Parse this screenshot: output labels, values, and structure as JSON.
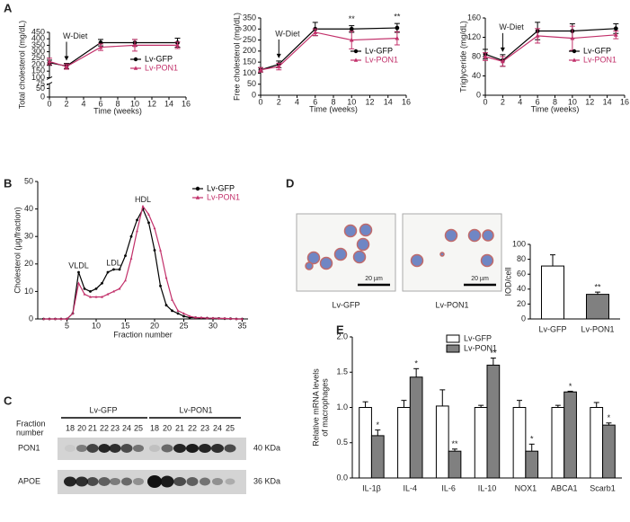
{
  "panel_labels": [
    "A",
    "B",
    "C",
    "D",
    "E"
  ],
  "chart_data": [
    {
      "type": "line",
      "y_label": "Total cholesterol (mg/dL)",
      "x_label": "Time (weeks)",
      "x": [
        0,
        2,
        6,
        10,
        15
      ],
      "xlim": [
        0,
        16
      ],
      "xticks": [
        0,
        2,
        4,
        6,
        8,
        10,
        12,
        14,
        16
      ],
      "ylim": [
        0,
        450
      ],
      "ybreak": [
        75,
        100
      ],
      "yticks": [
        0,
        50,
        75,
        100,
        150,
        200,
        250,
        300,
        350,
        400,
        450
      ],
      "legend": "center right",
      "annotations": [
        {
          "text": "W-Diet",
          "x": 2,
          "arrow": true
        }
      ],
      "series": [
        {
          "name": "Lv-GFP",
          "color": "#000000",
          "marker": "circle",
          "values": [
            215,
            190,
            370,
            370,
            370
          ],
          "errors": [
            20,
            20,
            25,
            25,
            35
          ]
        },
        {
          "name": "Lv-PON1",
          "color": "#c2306a",
          "marker": "triangle",
          "values": [
            225,
            185,
            335,
            350,
            350
          ],
          "errors": [
            25,
            20,
            25,
            45,
            25
          ]
        }
      ]
    },
    {
      "type": "line",
      "y_label": "Free cholesterol (mg/dL)",
      "x_label": "Time (weeks)",
      "x": [
        0,
        2,
        6,
        10,
        15
      ],
      "xlim": [
        0,
        16
      ],
      "xticks": [
        0,
        2,
        4,
        6,
        8,
        10,
        12,
        14,
        16
      ],
      "ylim": [
        0,
        350
      ],
      "yticks": [
        0,
        50,
        100,
        150,
        200,
        250,
        300,
        350
      ],
      "legend": "center right",
      "annotations": [
        {
          "text": "W-Diet",
          "x": 2,
          "arrow": true
        },
        {
          "text": "**",
          "x": 10
        },
        {
          "text": "**",
          "x": 15
        }
      ],
      "series": [
        {
          "name": "Lv-GFP",
          "color": "#000000",
          "marker": "circle",
          "values": [
            115,
            140,
            300,
            300,
            305
          ],
          "errors": [
            10,
            15,
            30,
            15,
            20
          ]
        },
        {
          "name": "Lv-PON1",
          "color": "#c2306a",
          "marker": "triangle",
          "values": [
            115,
            130,
            285,
            250,
            258
          ],
          "errors": [
            10,
            15,
            15,
            40,
            30
          ]
        }
      ]
    },
    {
      "type": "line",
      "y_label": "Triglyceride (mg/dL)",
      "x_label": "Time (weeks)",
      "x": [
        0,
        2,
        6,
        10,
        15
      ],
      "xlim": [
        0,
        16
      ],
      "xticks": [
        0,
        2,
        4,
        6,
        8,
        10,
        12,
        14,
        16
      ],
      "ylim": [
        0,
        160
      ],
      "yticks": [
        0,
        40,
        80,
        120,
        160
      ],
      "legend": "center right",
      "annotations": [
        {
          "text": "W-Diet",
          "x": 2,
          "arrow": true
        }
      ],
      "series": [
        {
          "name": "Lv-GFP",
          "color": "#000000",
          "marker": "circle",
          "values": [
            85,
            72,
            133,
            133,
            138
          ],
          "errors": [
            10,
            12,
            18,
            15,
            10
          ]
        },
        {
          "name": "Lv-PON1",
          "color": "#c2306a",
          "marker": "triangle",
          "values": [
            80,
            70,
            123,
            118,
            125
          ],
          "errors": [
            8,
            10,
            15,
            25,
            8
          ]
        }
      ]
    },
    {
      "type": "line",
      "y_label": "Cholesterol (µg/fraction)",
      "x_label": "Fraction number",
      "x": [
        1,
        2,
        3,
        4,
        5,
        6,
        7,
        8,
        9,
        10,
        11,
        12,
        13,
        14,
        15,
        16,
        17,
        18,
        19,
        20,
        21,
        22,
        23,
        24,
        25,
        26,
        27,
        28,
        29,
        30,
        31,
        32,
        33,
        34,
        35
      ],
      "xlim": [
        0,
        36
      ],
      "xticks": [
        5,
        10,
        15,
        20,
        25,
        30,
        35
      ],
      "ylim": [
        0,
        50
      ],
      "yticks": [
        0,
        10,
        20,
        30,
        40,
        50
      ],
      "legend": "upper right",
      "annotations": [
        {
          "text": "VLDL",
          "x": 7
        },
        {
          "text": "LDL",
          "x": 13
        },
        {
          "text": "HDL",
          "x": 18
        }
      ],
      "series": [
        {
          "name": "Lv-GFP",
          "color": "#000000",
          "marker": "circle",
          "values": [
            0,
            0,
            0,
            0,
            0,
            2,
            17,
            11,
            10,
            11,
            13,
            17,
            18,
            18,
            23,
            30,
            36,
            40,
            35,
            25,
            12,
            5,
            3,
            2,
            1,
            0.5,
            0.5,
            0.3,
            0.3,
            0.2,
            0.2,
            0.1,
            0.1,
            0,
            0
          ]
        },
        {
          "name": "Lv-PON1",
          "color": "#c2306a",
          "marker": "triangle",
          "values": [
            0,
            0,
            0,
            0,
            0,
            2,
            13,
            9,
            8,
            8,
            8,
            9,
            10,
            11,
            14,
            22,
            32,
            41,
            38,
            33,
            25,
            15,
            7,
            3,
            2,
            1,
            0.5,
            0.5,
            0.3,
            0.3,
            0.2,
            0.2,
            0.1,
            0,
            0
          ]
        }
      ]
    },
    {
      "type": "bar",
      "y_label": "IOD/cell",
      "categories": [
        "Lv-GFP",
        "Lv-PON1"
      ],
      "values": [
        71,
        33
      ],
      "errors": [
        15,
        3
      ],
      "colors": [
        "#ffffff",
        "#808080"
      ],
      "significance": [
        null,
        "**"
      ],
      "ylim": [
        0,
        100
      ],
      "yticks": [
        0,
        20,
        40,
        60,
        80,
        100
      ]
    },
    {
      "type": "bar",
      "y_label": [
        "Relative mRNA levels",
        "of macrophages"
      ],
      "categories": [
        "IL-1β",
        "IL-4",
        "IL-6",
        "IL-10",
        "NOX1",
        "ABCA1",
        "Scarb1"
      ],
      "ylim": [
        0,
        2
      ],
      "yticks": [
        {
          "value": 0,
          "label": "0.0"
        },
        0.5,
        {
          "value": 1,
          "label": "1.0"
        },
        1.5,
        {
          "value": 2,
          "label": "2.0"
        }
      ],
      "legend": "upper center",
      "series": [
        {
          "name": "Lv-GFP",
          "color": "#ffffff",
          "values": [
            1,
            1,
            1.02,
            1,
            1,
            1,
            1
          ],
          "errors": [
            0.08,
            0.1,
            0.23,
            0.03,
            0.1,
            0.03,
            0.07
          ]
        },
        {
          "name": "Lv-PON1",
          "color": "#808080",
          "values": [
            0.6,
            1.43,
            0.38,
            1.6,
            0.38,
            1.22,
            0.75
          ],
          "errors": [
            0.08,
            0.12,
            0.03,
            0.1,
            0.1,
            0.01,
            0.03
          ],
          "significance": [
            "*",
            "*",
            "**",
            "**",
            "*",
            "*",
            "*"
          ]
        }
      ]
    }
  ],
  "blot": {
    "group_labels": [
      "Lv-GFP",
      "Lv-PON1"
    ],
    "fraction_label": [
      "Fraction",
      "number"
    ],
    "fractions": [
      18,
      20,
      21,
      22,
      23,
      24,
      25,
      18,
      20,
      21,
      22,
      23,
      24,
      25
    ],
    "rows": [
      {
        "name": "PON1",
        "size": "40 KDa"
      },
      {
        "name": "APOE",
        "size": "36 KDa"
      }
    ]
  },
  "micrographs": [
    {
      "label": "Lv-GFP",
      "scale_bar": "20 µm"
    },
    {
      "label": "Lv-PON1",
      "scale_bar": "20 µm"
    }
  ]
}
